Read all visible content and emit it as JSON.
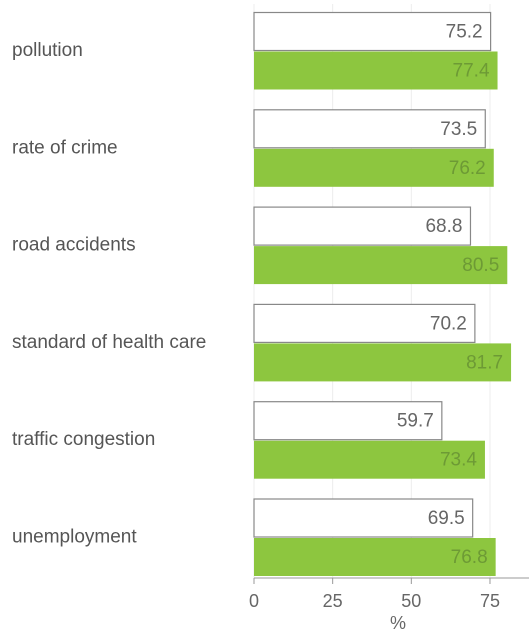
{
  "chart_data": {
    "type": "bar",
    "orientation": "horizontal",
    "categories": [
      "pollution",
      "rate of crime",
      "road accidents",
      "standard of health care",
      "traffic congestion",
      "unemployment"
    ],
    "series": [
      {
        "color": "#ffffff",
        "values": [
          75.2,
          73.5,
          68.8,
          70.2,
          59.7,
          69.5
        ]
      },
      {
        "color": "#8dc63f",
        "values": [
          77.4,
          76.2,
          80.5,
          81.7,
          73.4,
          76.8
        ]
      }
    ],
    "xlabel": "%",
    "xlim": [
      0,
      87.4
    ],
    "xticks": [
      0,
      25,
      50,
      75
    ],
    "grid": true
  }
}
